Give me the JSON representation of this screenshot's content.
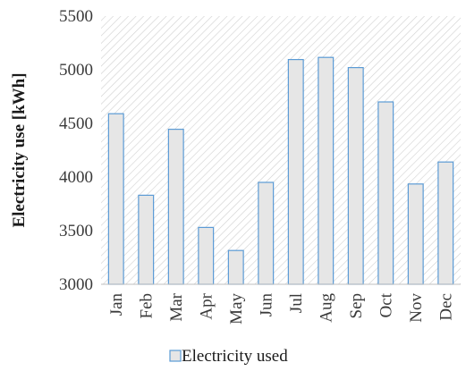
{
  "chart_data": {
    "type": "bar",
    "categories": [
      "Jan",
      "Feb",
      "Mar",
      "Apr",
      "May",
      "Jun",
      "Jul",
      "Aug",
      "Sep",
      "Oct",
      "Nov",
      "Dec"
    ],
    "series": [
      {
        "name": "Electricity used",
        "values": [
          4590,
          3830,
          4445,
          3530,
          3315,
          3950,
          5095,
          5115,
          5020,
          4700,
          3935,
          4140
        ]
      }
    ],
    "ylabel": "Electricity use [kWh]",
    "ylim": [
      3000,
      5500
    ],
    "yticks": [
      3000,
      3500,
      4000,
      4500,
      5000,
      5500
    ],
    "grid": false,
    "legend_position": "bottom",
    "colors": {
      "bar_fill": "#e6e6e6",
      "bar_stroke": "#5b9bd5",
      "hatch": "#d0d0d0",
      "axis": "#bfbfbf"
    }
  }
}
